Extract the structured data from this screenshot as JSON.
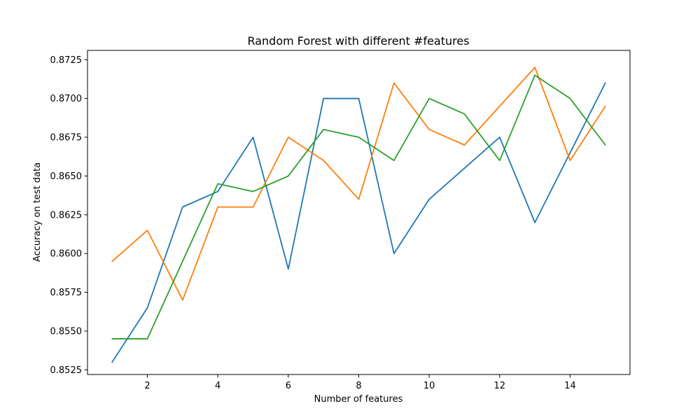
{
  "chart_data": {
    "type": "line",
    "title": "Random Forest with different #features",
    "xlabel": "Number of features",
    "ylabel": "Accuracy on test data",
    "x": [
      1,
      2,
      3,
      4,
      5,
      6,
      7,
      8,
      9,
      10,
      11,
      12,
      13,
      14,
      15
    ],
    "xlim": [
      0.3,
      15.7
    ],
    "ylim": [
      0.8522,
      0.8731
    ],
    "xticks": [
      2,
      4,
      6,
      8,
      10,
      12,
      14
    ],
    "xtick_labels": [
      "2",
      "4",
      "6",
      "8",
      "10",
      "12",
      "14"
    ],
    "yticks": [
      0.8525,
      0.855,
      0.8575,
      0.86,
      0.8625,
      0.865,
      0.8675,
      0.87,
      0.8725
    ],
    "ytick_labels": [
      "0.8525",
      "0.8550",
      "0.8575",
      "0.8600",
      "0.8625",
      "0.8650",
      "0.8675",
      "0.8700",
      "0.8725"
    ],
    "grid": false,
    "series": [
      {
        "color": "#1f77b4",
        "values": [
          0.853,
          0.8565,
          0.863,
          0.864,
          0.8675,
          0.859,
          0.87,
          0.87,
          0.86,
          0.8635,
          0.8655,
          0.8675,
          0.862,
          0.8665,
          0.871
        ]
      },
      {
        "color": "#ff7f0e",
        "values": [
          0.8595,
          0.8615,
          0.857,
          0.863,
          0.863,
          0.8675,
          0.866,
          0.8635,
          0.871,
          0.868,
          0.867,
          0.8695,
          0.872,
          0.866,
          0.8695
        ]
      },
      {
        "color": "#2ca02c",
        "values": [
          0.8545,
          0.8545,
          0.8595,
          0.8645,
          0.864,
          0.865,
          0.868,
          0.8675,
          0.866,
          0.87,
          0.869,
          0.866,
          0.8715,
          0.87,
          0.867
        ]
      }
    ]
  }
}
